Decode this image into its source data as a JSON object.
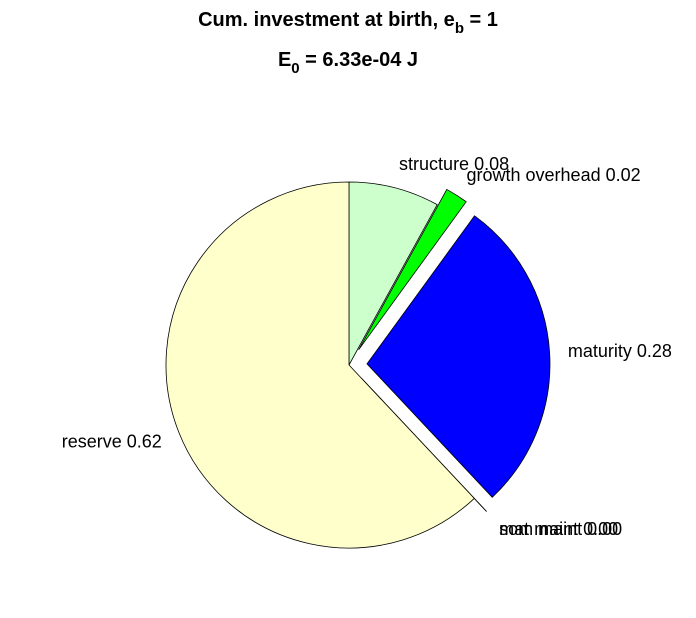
{
  "chart_data": {
    "type": "pie",
    "title": [
      "Cum. investment at birth, e",
      "b",
      " = 1"
    ],
    "subtitle": [
      "E",
      "0",
      " = 6.33e-04 J"
    ],
    "categories": [
      "structure",
      "growth overhead",
      "maturity",
      "som maint",
      "mat maint",
      "reserve"
    ],
    "values": [
      0.08,
      0.02,
      0.28,
      0,
      0,
      0.62
    ],
    "value_labels": [
      "0.08",
      "0.02",
      "0.28",
      "0.00",
      "0.00",
      "0.62"
    ],
    "colors": [
      "#ccffcc",
      "#00ff00",
      "#0000ff",
      "#ff0000",
      "#ff8000",
      "#ffffcc"
    ],
    "explode": [
      false,
      true,
      true,
      true,
      true,
      false
    ]
  }
}
